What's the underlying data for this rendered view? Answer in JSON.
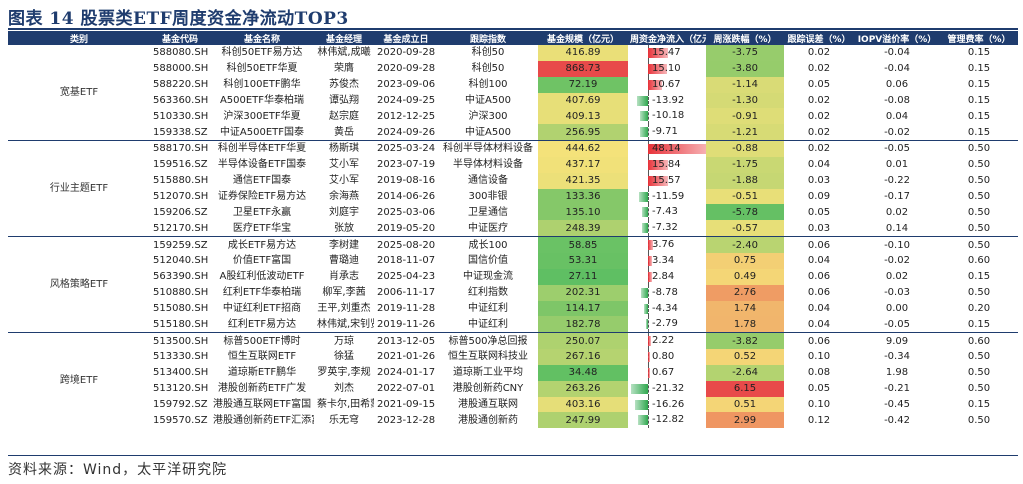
{
  "title": "图表 14  股票类ETF周度资金净流动TOP3",
  "footer": "资料来源：Wind，太平洋研究院",
  "headers": [
    "类别",
    "基金代码",
    "基金名称",
    "基金经理",
    "基金成立日",
    "跟踪指数",
    "基金规模（亿元）",
    "周资金净流入（亿元）",
    "周涨跌幅（%）",
    "跟踪误差（%）",
    "IOPV溢价率（%）",
    "管理费率（%）"
  ],
  "groups": [
    {
      "category": "宽基ETF",
      "rows": [
        {
          "code": "588080.SH",
          "name": "科创50ETF易方达",
          "manager": "林伟斌,成曦",
          "inception": "2020-09-28",
          "index": "科创50",
          "scale": "416.89",
          "flow": "15.47",
          "chg": "-3.75",
          "te": "0.02",
          "iopv": "-0.04",
          "fee": "0.15"
        },
        {
          "code": "588000.SH",
          "name": "科创50ETF华夏",
          "manager": "荣膺",
          "inception": "2020-09-28",
          "index": "科创50",
          "scale": "868.73",
          "flow": "15.10",
          "chg": "-3.80",
          "te": "0.02",
          "iopv": "-0.04",
          "fee": "0.15"
        },
        {
          "code": "588220.SH",
          "name": "科创100ETF鹏华",
          "manager": "苏俊杰",
          "inception": "2023-09-06",
          "index": "科创100",
          "scale": "72.19",
          "flow": "10.67",
          "chg": "-1.14",
          "te": "0.05",
          "iopv": "0.06",
          "fee": "0.15"
        },
        {
          "code": "563360.SH",
          "name": "A500ETF华泰柏瑞",
          "manager": "谭弘翔",
          "inception": "2024-09-25",
          "index": "中证A500",
          "scale": "407.69",
          "flow": "-13.92",
          "chg": "-1.30",
          "te": "0.02",
          "iopv": "-0.08",
          "fee": "0.15"
        },
        {
          "code": "510330.SH",
          "name": "沪深300ETF华夏",
          "manager": "赵宗庭",
          "inception": "2012-12-25",
          "index": "沪深300",
          "scale": "409.13",
          "flow": "-10.18",
          "chg": "-0.91",
          "te": "0.02",
          "iopv": "0.04",
          "fee": "0.15"
        },
        {
          "code": "159338.SZ",
          "name": "中证A500ETF国泰",
          "manager": "黄岳",
          "inception": "2024-09-26",
          "index": "中证A500",
          "scale": "256.95",
          "flow": "-9.71",
          "chg": "-1.21",
          "te": "0.02",
          "iopv": "-0.02",
          "fee": "0.15"
        }
      ]
    },
    {
      "category": "行业主题ETF",
      "rows": [
        {
          "code": "588170.SH",
          "name": "科创半导体ETF华夏",
          "manager": "杨斯琪",
          "inception": "2025-03-24",
          "index": "科创半导体材料设备",
          "scale": "444.62",
          "flow": "48.14",
          "chg": "-0.88",
          "te": "0.02",
          "iopv": "-0.05",
          "fee": "0.50"
        },
        {
          "code": "159516.SZ",
          "name": "半导体设备ETF国泰",
          "manager": "艾小军",
          "inception": "2023-07-19",
          "index": "半导体材料设备",
          "scale": "437.17",
          "flow": "15.84",
          "chg": "-1.75",
          "te": "0.04",
          "iopv": "0.01",
          "fee": "0.50"
        },
        {
          "code": "515880.SH",
          "name": "通信ETF国泰",
          "manager": "艾小军",
          "inception": "2019-08-16",
          "index": "通信设备",
          "scale": "421.35",
          "flow": "15.57",
          "chg": "-1.88",
          "te": "0.03",
          "iopv": "-0.22",
          "fee": "0.50"
        },
        {
          "code": "512070.SH",
          "name": "证券保险ETF易方达",
          "manager": "余海燕",
          "inception": "2014-06-26",
          "index": "300非银",
          "scale": "133.36",
          "flow": "-11.59",
          "chg": "-0.51",
          "te": "0.09",
          "iopv": "-0.17",
          "fee": "0.50"
        },
        {
          "code": "159206.SZ",
          "name": "卫星ETF永赢",
          "manager": "刘庭宇",
          "inception": "2025-03-06",
          "index": "卫星通信",
          "scale": "135.10",
          "flow": "-7.43",
          "chg": "-5.78",
          "te": "0.05",
          "iopv": "0.02",
          "fee": "0.50"
        },
        {
          "code": "512170.SH",
          "name": "医疗ETF华宝",
          "manager": "张放",
          "inception": "2019-05-20",
          "index": "中证医疗",
          "scale": "248.39",
          "flow": "-7.32",
          "chg": "-0.57",
          "te": "0.03",
          "iopv": "0.14",
          "fee": "0.50"
        }
      ]
    },
    {
      "category": "风格策略ETF",
      "rows": [
        {
          "code": "159259.SZ",
          "name": "成长ETF易方达",
          "manager": "李树建",
          "inception": "2025-08-20",
          "index": "成长100",
          "scale": "58.85",
          "flow": "3.76",
          "chg": "-2.40",
          "te": "0.06",
          "iopv": "-0.10",
          "fee": "0.50"
        },
        {
          "code": "512040.SH",
          "name": "价值ETF富国",
          "manager": "曹璐迪",
          "inception": "2018-11-07",
          "index": "国信价值",
          "scale": "53.31",
          "flow": "3.34",
          "chg": "0.75",
          "te": "0.04",
          "iopv": "-0.02",
          "fee": "0.60"
        },
        {
          "code": "563390.SH",
          "name": "A股红利低波动ETF",
          "manager": "肖承志",
          "inception": "2025-04-23",
          "index": "中证现金流",
          "scale": "27.11",
          "flow": "2.84",
          "chg": "0.49",
          "te": "0.06",
          "iopv": "0.02",
          "fee": "0.15"
        },
        {
          "code": "510880.SH",
          "name": "红利ETF华泰柏瑞",
          "manager": "柳军,李茜",
          "inception": "2006-11-17",
          "index": "红利指数",
          "scale": "202.31",
          "flow": "-8.78",
          "chg": "2.76",
          "te": "0.06",
          "iopv": "-0.03",
          "fee": "0.50"
        },
        {
          "code": "515080.SH",
          "name": "中证红利ETF招商",
          "manager": "王平,刘重杰",
          "inception": "2019-11-28",
          "index": "中证红利",
          "scale": "114.17",
          "flow": "-4.34",
          "chg": "1.74",
          "te": "0.04",
          "iopv": "0.00",
          "fee": "0.20"
        },
        {
          "code": "515180.SH",
          "name": "红利ETF易方达",
          "manager": "林伟斌,宋钊贤",
          "inception": "2019-11-26",
          "index": "中证红利",
          "scale": "182.78",
          "flow": "-2.79",
          "chg": "1.78",
          "te": "0.04",
          "iopv": "-0.05",
          "fee": "0.15"
        }
      ]
    },
    {
      "category": "跨境ETF",
      "rows": [
        {
          "code": "513500.SH",
          "name": "标普500ETF博时",
          "manager": "万琼",
          "inception": "2013-12-05",
          "index": "标普500净总回报",
          "scale": "250.07",
          "flow": "2.22",
          "chg": "-3.82",
          "te": "0.06",
          "iopv": "9.09",
          "fee": "0.60"
        },
        {
          "code": "513330.SH",
          "name": "恒生互联网ETF",
          "manager": "徐猛",
          "inception": "2021-01-26",
          "index": "恒生互联网科技业",
          "scale": "267.16",
          "flow": "0.80",
          "chg": "0.52",
          "te": "0.10",
          "iopv": "-0.34",
          "fee": "0.50"
        },
        {
          "code": "513400.SH",
          "name": "道琼斯ETF鹏华",
          "manager": "罗英宇,李规",
          "inception": "2024-01-17",
          "index": "道琼斯工业平均",
          "scale": "34.48",
          "flow": "0.67",
          "chg": "-2.64",
          "te": "0.08",
          "iopv": "1.98",
          "fee": "0.50"
        },
        {
          "code": "513120.SH",
          "name": "港股创新药ETF广发",
          "manager": "刘杰",
          "inception": "2022-07-01",
          "index": "港股创新药CNY",
          "scale": "263.26",
          "flow": "-21.32",
          "chg": "6.15",
          "te": "0.05",
          "iopv": "-0.21",
          "fee": "0.50"
        },
        {
          "code": "159792.SZ",
          "name": "港股通互联网ETF富国",
          "manager": "蔡卡尔,田希蒙",
          "inception": "2021-09-15",
          "index": "港股通互联网",
          "scale": "403.16",
          "flow": "-16.26",
          "chg": "0.51",
          "te": "0.10",
          "iopv": "-0.45",
          "fee": "0.15"
        },
        {
          "code": "159570.SZ",
          "name": "港股通创新药ETF汇添富",
          "manager": "乐无穹",
          "inception": "2023-12-28",
          "index": "港股通创新药",
          "scale": "247.99",
          "flow": "-12.82",
          "chg": "2.99",
          "te": "0.12",
          "iopv": "-0.42",
          "fee": "0.50"
        }
      ]
    }
  ],
  "colors": {
    "header_bg": "#1f3c6e",
    "flow_positive": "#e8333a",
    "flow_negative": "#2fa84f",
    "scale_high": "#e84a4a",
    "scale_mid": "#f5e27a",
    "scale_low": "#5fbf63"
  }
}
